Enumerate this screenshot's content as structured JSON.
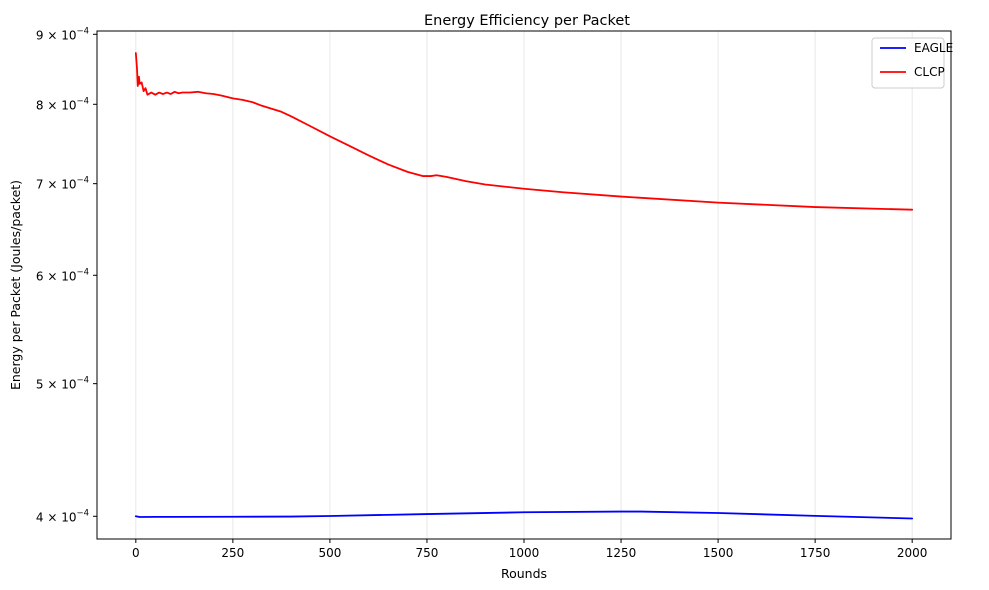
{
  "chart_data": {
    "type": "line",
    "title": "Energy Efficiency per Packet",
    "xlabel": "Rounds",
    "ylabel": "Energy per Packet (Joules/packet)",
    "y_scale": "log",
    "xlim": [
      -100,
      2100
    ],
    "ylim": [
      0.000385,
      0.000905
    ],
    "grid": "vertical",
    "legend_position": "top-right",
    "x_ticks": [
      {
        "value": 0,
        "label": "0"
      },
      {
        "value": 250,
        "label": "250"
      },
      {
        "value": 500,
        "label": "500"
      },
      {
        "value": 750,
        "label": "750"
      },
      {
        "value": 1000,
        "label": "1000"
      },
      {
        "value": 1250,
        "label": "1250"
      },
      {
        "value": 1500,
        "label": "1500"
      },
      {
        "value": 1750,
        "label": "1750"
      },
      {
        "value": 2000,
        "label": "2000"
      }
    ],
    "y_ticks": [
      {
        "value": 0.0004,
        "mantissa": "4",
        "exponent": "−4"
      },
      {
        "value": 0.0005,
        "mantissa": "5",
        "exponent": "−4"
      },
      {
        "value": 0.0006,
        "mantissa": "6",
        "exponent": "−4"
      },
      {
        "value": 0.0007,
        "mantissa": "7",
        "exponent": "−4"
      },
      {
        "value": 0.0008,
        "mantissa": "8",
        "exponent": "−4"
      },
      {
        "value": 0.0009,
        "mantissa": "9",
        "exponent": "−4"
      }
    ],
    "series": [
      {
        "name": "EAGLE",
        "color": "#0000ff",
        "x": [
          0,
          10,
          50,
          100,
          250,
          400,
          500,
          750,
          1000,
          1250,
          1300,
          1500,
          1750,
          2000
        ],
        "y": [
          0.0004,
          0.0003995,
          0.0003996,
          0.0003996,
          0.0003997,
          0.0003998,
          0.0004002,
          0.0004015,
          0.0004027,
          0.0004032,
          0.0004032,
          0.0004022,
          0.0004003,
          0.0003985
        ]
      },
      {
        "name": "CLCP",
        "color": "#ff0000",
        "x": [
          0,
          3,
          5,
          8,
          10,
          15,
          20,
          25,
          30,
          40,
          50,
          60,
          70,
          80,
          90,
          100,
          110,
          120,
          140,
          160,
          180,
          200,
          220,
          250,
          275,
          300,
          325,
          350,
          375,
          400,
          450,
          500,
          550,
          600,
          650,
          700,
          740,
          760,
          775,
          800,
          850,
          900,
          1000,
          1100,
          1250,
          1500,
          1750,
          2000
        ],
        "y": [
          0.000872,
          0.00085,
          0.000825,
          0.000838,
          0.000828,
          0.00083,
          0.000818,
          0.000822,
          0.000813,
          0.000816,
          0.000813,
          0.000816,
          0.000814,
          0.000816,
          0.000814,
          0.000817,
          0.000815,
          0.000816,
          0.000816,
          0.000817,
          0.000815,
          0.000814,
          0.000812,
          0.000808,
          0.000806,
          0.000803,
          0.000798,
          0.000794,
          0.00079,
          0.000784,
          0.000771,
          0.000758,
          0.000746,
          0.000734,
          0.000723,
          0.000714,
          0.000709,
          0.000709,
          0.00071,
          0.000708,
          0.000703,
          0.000699,
          0.000694,
          0.00069,
          0.000685,
          0.000678,
          0.000673,
          0.00067
        ]
      }
    ]
  }
}
